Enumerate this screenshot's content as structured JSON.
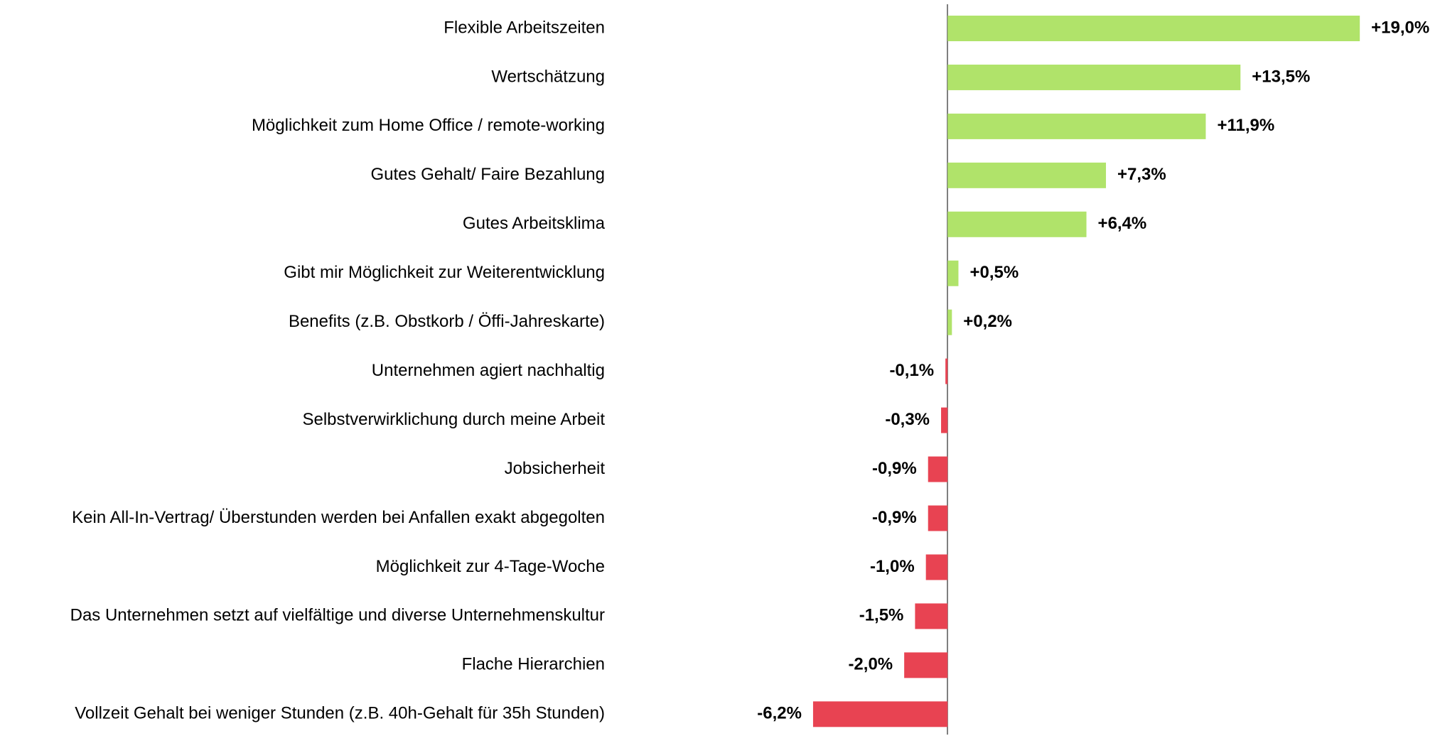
{
  "chart_data": {
    "type": "hbar",
    "categories": [
      "Flexible Arbeitszeiten",
      "Wertschätzung",
      "Möglichkeit zum Home Office / remote-working",
      "Gutes Gehalt/ Faire Bezahlung",
      "Gutes Arbeitsklima",
      "Gibt mir Möglichkeit zur Weiterentwicklung",
      "Benefits (z.B. Obstkorb / Öffi-Jahreskarte)",
      "Unternehmen agiert nachhaltig",
      "Selbstverwirklichung durch meine Arbeit",
      "Jobsicherheit",
      "Kein All-In-Vertrag/ Überstunden werden bei Anfallen exakt abgegolten",
      "Möglichkeit zur 4-Tage-Woche",
      "Das Unternehmen setzt auf vielfältige und diverse Unternehmenskultur",
      "Flache Hierarchien",
      "Vollzeit Gehalt bei weniger Stunden (z.B. 40h-Gehalt für 35h Stunden)"
    ],
    "values": [
      19.0,
      13.5,
      11.9,
      7.3,
      6.4,
      0.5,
      0.2,
      -0.1,
      -0.3,
      -0.9,
      -0.9,
      -1.0,
      -1.5,
      -2.0,
      -6.2
    ],
    "value_labels": [
      "+19,0%",
      "+13,5%",
      "+11,9%",
      "+7,3%",
      "+6,4%",
      "+0,5%",
      "+0,2%",
      "-0,1%",
      "-0,3%",
      "-0,9%",
      "-0,9%",
      "-1,0%",
      "-1,5%",
      "-2,0%",
      "-6,2%"
    ],
    "positive_color": "#b0e36a",
    "negative_color": "#e84352",
    "xlim": [
      -8,
      22.5
    ]
  }
}
